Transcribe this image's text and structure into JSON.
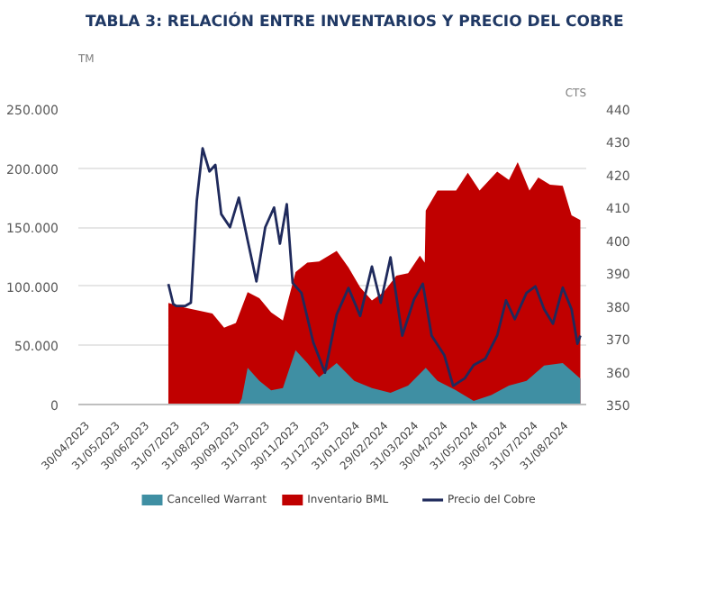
{
  "chart_data": {
    "type": "area",
    "title": "TABLA 3: RELACIÓN ENTRE INVENTARIOS Y PRECIO DEL COBRE",
    "ylabel": "TM",
    "y2label": "CTS",
    "series": [
      {
        "name": "Inventario BML",
        "color": "#c00000",
        "x": [
          "2023-07-21",
          "2023-08-07",
          "2023-09-04",
          "2023-09-16",
          "2023-09-28",
          "2023-10-10",
          "2023-10-22",
          "2023-11-03",
          "2023-11-15",
          "2023-11-28",
          "2023-12-10",
          "2023-12-22",
          "2024-01-09",
          "2024-01-21",
          "2024-02-02",
          "2024-02-14",
          "2024-02-26",
          "2024-03-10",
          "2024-03-22",
          "2024-04-03",
          "2024-04-08",
          "2024-04-09",
          "2024-04-21",
          "2024-05-10",
          "2024-05-22",
          "2024-06-03",
          "2024-06-21",
          "2024-07-03",
          "2024-07-12",
          "2024-07-24",
          "2024-08-02",
          "2024-08-14",
          "2024-08-27",
          "2024-09-05",
          "2024-09-14"
        ],
        "values": [
          86000,
          82000,
          77000,
          65000,
          69000,
          95000,
          90000,
          78000,
          71000,
          112000,
          120000,
          121000,
          130000,
          116000,
          99000,
          88000,
          95000,
          109000,
          111000,
          126000,
          120000,
          164000,
          181000,
          181000,
          196000,
          181000,
          197000,
          190000,
          205000,
          181000,
          192000,
          186000,
          185000,
          160000,
          156000
        ]
      },
      {
        "name": "Cancelled Warrant",
        "color": "#3f8fa3",
        "x": [
          "2023-10-01",
          "2023-10-04",
          "2023-10-10",
          "2023-10-22",
          "2023-11-03",
          "2023-11-15",
          "2023-11-28",
          "2023-12-10",
          "2023-12-22",
          "2024-01-09",
          "2024-01-27",
          "2024-02-14",
          "2024-03-04",
          "2024-03-22",
          "2024-04-09",
          "2024-04-21",
          "2024-05-10",
          "2024-05-28",
          "2024-06-15",
          "2024-07-03",
          "2024-07-21",
          "2024-08-08",
          "2024-08-27",
          "2024-09-14"
        ],
        "values": [
          0,
          5000,
          31000,
          20000,
          12000,
          14000,
          46000,
          35000,
          23000,
          35000,
          20000,
          14000,
          10000,
          16000,
          31000,
          20000,
          12000,
          3000,
          8000,
          16000,
          20000,
          33000,
          35000,
          22000
        ]
      },
      {
        "name": "Precio del Cobre",
        "type": "line",
        "axis": "y2",
        "color": "#1f2a5c",
        "x": [
          "2023-07-21",
          "2023-07-26",
          "2023-07-29",
          "2023-08-07",
          "2023-08-13",
          "2023-08-19",
          "2023-08-25",
          "2023-09-01",
          "2023-09-07",
          "2023-09-13",
          "2023-09-22",
          "2023-10-01",
          "2023-10-10",
          "2023-10-19",
          "2023-10-28",
          "2023-11-06",
          "2023-11-12",
          "2023-11-19",
          "2023-11-25",
          "2023-12-04",
          "2023-12-16",
          "2023-12-28",
          "2024-01-09",
          "2024-01-21",
          "2024-02-02",
          "2024-02-14",
          "2024-02-23",
          "2024-03-04",
          "2024-03-16",
          "2024-03-28",
          "2024-04-06",
          "2024-04-15",
          "2024-04-28",
          "2024-05-07",
          "2024-05-19",
          "2024-05-28",
          "2024-06-09",
          "2024-06-21",
          "2024-06-30",
          "2024-07-09",
          "2024-07-21",
          "2024-07-30",
          "2024-08-08",
          "2024-08-17",
          "2024-08-27",
          "2024-09-05",
          "2024-09-11",
          "2024-09-14"
        ],
        "values": [
          386.7,
          380.6,
          380,
          380,
          381,
          412,
          428,
          421,
          423,
          408,
          404,
          413,
          400,
          387.5,
          404,
          410,
          399,
          411,
          387,
          384,
          369,
          359.7,
          377.4,
          385.5,
          377,
          392,
          381,
          394.8,
          371,
          382,
          386.8,
          371,
          365,
          355.7,
          358,
          362,
          364,
          371,
          381.7,
          376,
          384,
          386,
          379,
          374.6,
          385.6,
          379,
          368.5,
          371
        ]
      }
    ],
    "xlim": [
      "2023-04-20",
      "2024-09-20"
    ],
    "xticks": [
      {
        "value": "2023-04-30",
        "label": "30/04/2023"
      },
      {
        "value": "2023-05-31",
        "label": "31/05/2023"
      },
      {
        "value": "2023-06-30",
        "label": "30/06/2023"
      },
      {
        "value": "2023-07-31",
        "label": "31/07/2023"
      },
      {
        "value": "2023-08-31",
        "label": "31/08/2023"
      },
      {
        "value": "2023-09-30",
        "label": "30/09/2023"
      },
      {
        "value": "2023-10-31",
        "label": "31/10/2023"
      },
      {
        "value": "2023-11-30",
        "label": "30/11/2023"
      },
      {
        "value": "2023-12-31",
        "label": "31/12/2023"
      },
      {
        "value": "2024-01-31",
        "label": "31/01/2024"
      },
      {
        "value": "2024-02-29",
        "label": "29/02/2024"
      },
      {
        "value": "2024-03-31",
        "label": "31/03/2024"
      },
      {
        "value": "2024-04-30",
        "label": "30/04/2024"
      },
      {
        "value": "2024-05-31",
        "label": "31/05/2024"
      },
      {
        "value": "2024-06-30",
        "label": "30/06/2024"
      },
      {
        "value": "2024-07-31",
        "label": "31/07/2024"
      },
      {
        "value": "2024-08-31",
        "label": "31/08/2024"
      }
    ],
    "ylim": [
      0,
      250000
    ],
    "yticks": [
      0,
      {
        "value": 50000,
        "label": "50.000"
      },
      {
        "value": 100000,
        "label": "100.000"
      },
      {
        "value": 150000,
        "label": "150.000"
      },
      {
        "value": 200000,
        "label": "200.000"
      },
      {
        "value": 250000,
        "label": "250.000"
      }
    ],
    "y2lim": [
      350,
      440
    ],
    "y2ticks": [
      350,
      360,
      370,
      380,
      390,
      400,
      410,
      420,
      430,
      440
    ],
    "grid": "y",
    "legend": "bottom"
  }
}
